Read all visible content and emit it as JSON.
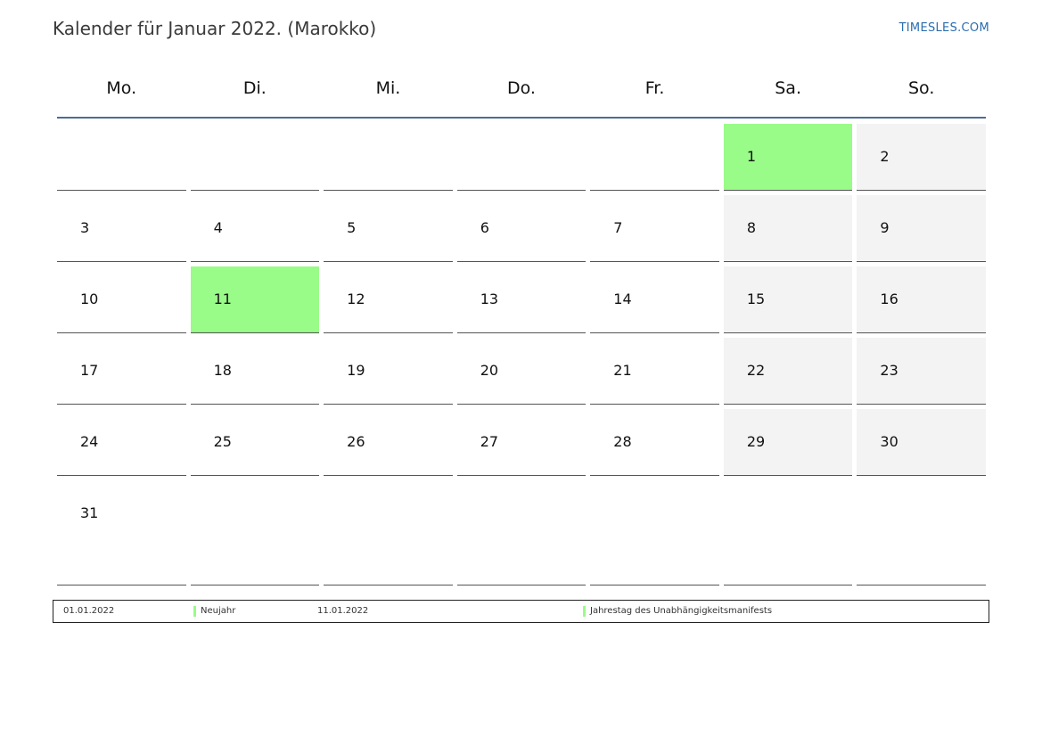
{
  "header": {
    "title": "Kalender für Januar 2022. (Marokko)",
    "site": "TIMESLES.COM"
  },
  "colors": {
    "holiday": "#99fb88",
    "weekend": "#f3f3f3",
    "rule": "#4e6b94",
    "link": "#2a6db0"
  },
  "weekdays": [
    "Mo.",
    "Di.",
    "Mi.",
    "Do.",
    "Fr.",
    "Sa.",
    "So."
  ],
  "weeks": [
    [
      null,
      null,
      null,
      null,
      null,
      {
        "day": "1",
        "holiday": true
      },
      {
        "day": "2"
      }
    ],
    [
      {
        "day": "3"
      },
      {
        "day": "4"
      },
      {
        "day": "5"
      },
      {
        "day": "6"
      },
      {
        "day": "7"
      },
      {
        "day": "8"
      },
      {
        "day": "9"
      }
    ],
    [
      {
        "day": "10"
      },
      {
        "day": "11",
        "holiday": true
      },
      {
        "day": "12"
      },
      {
        "day": "13"
      },
      {
        "day": "14"
      },
      {
        "day": "15"
      },
      {
        "day": "16"
      }
    ],
    [
      {
        "day": "17"
      },
      {
        "day": "18"
      },
      {
        "day": "19"
      },
      {
        "day": "20"
      },
      {
        "day": "21"
      },
      {
        "day": "22"
      },
      {
        "day": "23"
      }
    ],
    [
      {
        "day": "24"
      },
      {
        "day": "25"
      },
      {
        "day": "26"
      },
      {
        "day": "27"
      },
      {
        "day": "28"
      },
      {
        "day": "29"
      },
      {
        "day": "30"
      }
    ],
    [
      {
        "day": "31"
      },
      null,
      null,
      null,
      null,
      null,
      null
    ]
  ],
  "legend": {
    "holidays": [
      {
        "date": "01.01.2022",
        "name": "Neujahr"
      },
      {
        "date": "11.01.2022",
        "name": "Jahrestag des Unabhängigkeitsmanifests"
      }
    ]
  }
}
